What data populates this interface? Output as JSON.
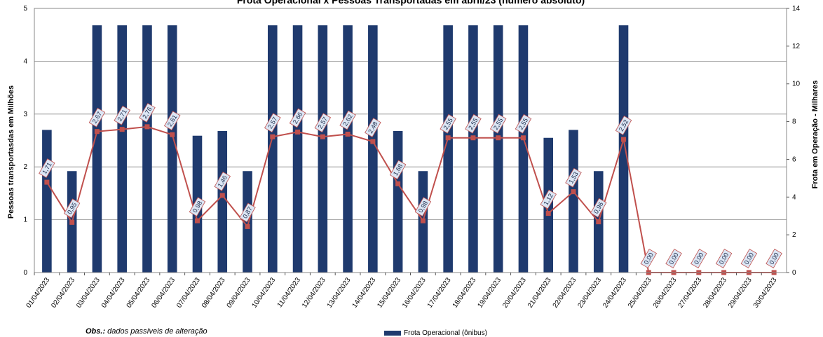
{
  "chart_data": {
    "type": "bar",
    "title": "Frota Operacional x Pessoas Transportadas em abril/23 (número absoluto)",
    "note_bold": "Obs.:",
    "note_text": " dados passíveis de alteração",
    "ylabel_left": "Pessoas transportasdas em Milhões",
    "ylabel_right": "Frota  em Operação - Milhares",
    "ylim_left": [
      0,
      5
    ],
    "yticks_left": [
      0,
      1,
      2,
      3,
      4,
      5
    ],
    "ylim_right": [
      0,
      14
    ],
    "yticks_right": [
      0,
      2,
      4,
      6,
      8,
      10,
      12,
      14
    ],
    "grid": true,
    "legend_position": "bottom",
    "categories": [
      "01/04/2023",
      "02/04/2023",
      "03/04/2023",
      "04/04/2023",
      "05/04/2023",
      "06/04/2023",
      "07/04/2023",
      "08/04/2023",
      "09/04/2023",
      "10/04/2023",
      "11/04/2023",
      "12/04/2023",
      "13/04/2023",
      "14/04/2023",
      "15/04/2023",
      "16/04/2023",
      "17/04/2023",
      "18/04/2023",
      "19/04/2023",
      "20/04/2023",
      "21/04/2023",
      "22/04/2023",
      "23/04/2023",
      "24/04/2023",
      "25/04/2023",
      "26/04/2023",
      "27/04/2023",
      "28/04/2023",
      "29/04/2023",
      "30/04/2023"
    ],
    "series": [
      {
        "name": "Frota Operacional (ônibus)",
        "kind": "bar",
        "axis": "left",
        "color": "#1f3a6e",
        "values": [
          2.7,
          1.92,
          4.68,
          4.68,
          4.68,
          4.68,
          2.59,
          2.68,
          1.92,
          4.68,
          4.68,
          4.68,
          4.68,
          4.68,
          2.68,
          1.92,
          4.68,
          4.68,
          4.68,
          4.68,
          2.55,
          2.7,
          1.92,
          4.68,
          0,
          0,
          0,
          0,
          0,
          0
        ]
      },
      {
        "kind": "line",
        "axis": "left",
        "color": "#c0504d",
        "values": [
          1.71,
          0.95,
          2.67,
          2.71,
          2.76,
          2.61,
          0.98,
          1.46,
          0.87,
          2.57,
          2.66,
          2.57,
          2.62,
          2.48,
          1.68,
          0.98,
          2.55,
          2.55,
          2.55,
          2.55,
          1.12,
          1.53,
          0.96,
          2.52,
          0.0,
          0.0,
          0.0,
          0.0,
          0.0,
          0.0
        ],
        "labels": [
          "1,71",
          "0,95",
          "2,67",
          "2,71",
          "2,76",
          "2,61",
          "0,98",
          "1,46",
          "0,87",
          "2,57",
          "2,66",
          "2,57",
          "2,62",
          "2,48",
          "1,68",
          "0,98",
          "2,55",
          "2,55",
          "2,55",
          "2,55",
          "1,12",
          "1,53",
          "0,96",
          "2,52",
          "0,00",
          "0,00",
          "0,00",
          "0,00",
          "0,00",
          "0,00"
        ]
      }
    ]
  }
}
